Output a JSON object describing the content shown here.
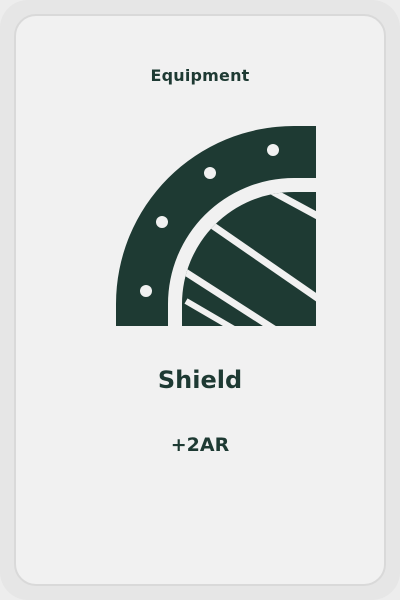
{
  "card": {
    "category": "Equipment",
    "icon": "shield-icon",
    "name": "Shield",
    "stat": "+2AR"
  },
  "colors": {
    "ink": "#1e3a33",
    "card_bg": "#f1f1f1",
    "card_border": "#d9d9d9",
    "page_bg": "#e6e6e6"
  }
}
